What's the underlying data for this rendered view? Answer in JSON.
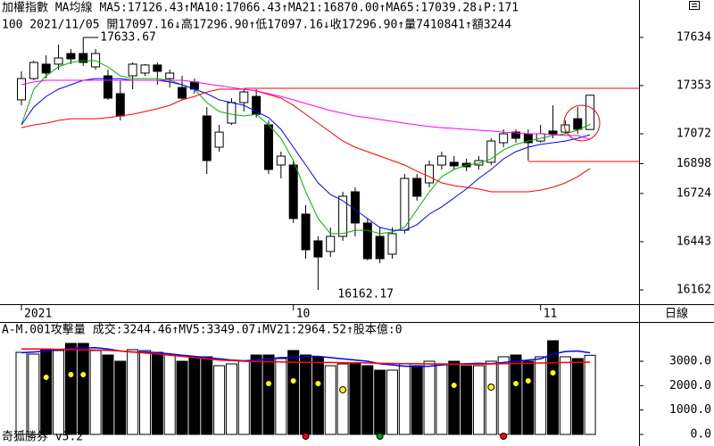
{
  "chart_data": [
    {
      "type": "candlestick",
      "title": "加權指數 MA均線",
      "header_tail": "P:171",
      "info_line": "100 2021/11/05 開17097.16↓高17296.90↑低17097.16↓收17296.90↑量7410841↑額3244",
      "period_label": "日線",
      "high_label": "17633.67",
      "low_label": "16162.17",
      "categories": [
        "2021",
        null,
        null,
        null,
        null,
        null,
        null,
        null,
        null,
        null,
        null,
        null,
        null,
        null,
        null,
        null,
        null,
        null,
        null,
        null,
        null,
        null,
        "10",
        null,
        null,
        null,
        null,
        null,
        null,
        null,
        null,
        null,
        null,
        null,
        null,
        null,
        null,
        null,
        null,
        null,
        null,
        null,
        "11",
        null,
        null,
        null,
        null
      ],
      "open": [
        17270,
        17394,
        17478,
        17478,
        17540,
        17540,
        17462,
        17410,
        17306,
        17410,
        17426,
        17473,
        17394,
        17342,
        17374,
        17176,
        16994,
        17134,
        17254,
        17290,
        17124,
        16890,
        16890,
        16604,
        16448,
        16386,
        16474,
        16734,
        16552,
        16474,
        16370,
        16510,
        16812,
        16786,
        16890,
        16906,
        16900,
        16890,
        16906,
        17020,
        17082,
        17072,
        17030,
        17088,
        17082,
        17160,
        17097.16
      ],
      "high": [
        17436,
        17498,
        17530,
        17592,
        17566,
        17633.67,
        17566,
        17446,
        17384,
        17488,
        17478,
        17488,
        17446,
        17410,
        17394,
        17228,
        17124,
        17280,
        17332,
        17332,
        17150,
        16968,
        16916,
        16656,
        16474,
        16526,
        16734,
        16760,
        16578,
        16526,
        16526,
        16838,
        16838,
        16916,
        16968,
        16942,
        16926,
        16942,
        17046,
        17098,
        17098,
        17098,
        17124,
        17238,
        17150,
        17228,
        17296.9
      ],
      "low": [
        17238,
        17384,
        17394,
        17446,
        17478,
        17467,
        17446,
        17270,
        17150,
        17332,
        17410,
        17358,
        17342,
        17270,
        17306,
        16838,
        16968,
        17124,
        17202,
        17166,
        16838,
        16812,
        16552,
        16344,
        16162.17,
        16354,
        16448,
        16474,
        16334,
        16318,
        16344,
        16490,
        16682,
        16760,
        16864,
        16864,
        16854,
        16864,
        16890,
        16994,
        17020,
        16916,
        17020,
        17046,
        17072,
        17072,
        17097.16
      ],
      "close": [
        17394,
        17488,
        17426,
        17514,
        17509,
        17488,
        17540,
        17280,
        17176,
        17478,
        17473,
        17436,
        17426,
        17280,
        17332,
        16916,
        17082,
        17254,
        17316,
        17186,
        16864,
        16942,
        16578,
        16396,
        16354,
        16474,
        16708,
        16552,
        16344,
        16344,
        16490,
        16812,
        16708,
        16890,
        16942,
        16885,
        16880,
        16916,
        17030,
        17072,
        17046,
        17020,
        17072,
        17072,
        17124,
        17098,
        17296.9
      ],
      "up_color": "#ffffff",
      "down_color": "#000000",
      "series": [
        {
          "name": "MA5:17126.43↑",
          "color": "#00b000",
          "values": [
            17124,
            17332,
            17410,
            17462,
            17488,
            17498,
            17498,
            17462,
            17410,
            17394,
            17394,
            17394,
            17384,
            17358,
            17332,
            17254,
            17202,
            17186,
            17176,
            17186,
            17124,
            17046,
            16916,
            16734,
            16578,
            16490,
            16490,
            16510,
            16510,
            16490,
            16500,
            16526,
            16630,
            16734,
            16822,
            16864,
            16890,
            16900,
            16926,
            16978,
            17010,
            17030,
            17046,
            17062,
            17072,
            17093,
            17126.43
          ]
        },
        {
          "name": "MA10:17066.43↑",
          "color": "#0000ff",
          "values": [
            17124,
            17228,
            17290,
            17332,
            17358,
            17384,
            17394,
            17394,
            17394,
            17384,
            17384,
            17384,
            17374,
            17358,
            17332,
            17306,
            17270,
            17254,
            17238,
            17202,
            17166,
            17098,
            16994,
            16890,
            16786,
            16718,
            16682,
            16630,
            16578,
            16526,
            16510,
            16510,
            16542,
            16604,
            16646,
            16698,
            16750,
            16812,
            16864,
            16926,
            16968,
            16994,
            17010,
            17020,
            17030,
            17046,
            17066.43
          ]
        },
        {
          "name": "MA21:16870.00↑",
          "color": "#ff0000",
          "values": [
            17108,
            17124,
            17134,
            17150,
            17160,
            17160,
            17160,
            17166,
            17176,
            17186,
            17202,
            17218,
            17238,
            17270,
            17290,
            17316,
            17332,
            17332,
            17332,
            17322,
            17301,
            17280,
            17238,
            17186,
            17134,
            17082,
            17030,
            16994,
            16968,
            16942,
            16916,
            16890,
            16854,
            16822,
            16786,
            16770,
            16760,
            16750,
            16734,
            16734,
            16734,
            16734,
            16744,
            16760,
            16786,
            16822,
            16870
          ]
        },
        {
          "name": "MA65:17039.28↓",
          "color": "#ff00ff",
          "values": [
            17358,
            17374,
            17384,
            17384,
            17384,
            17384,
            17384,
            17384,
            17384,
            17384,
            17384,
            17384,
            17384,
            17384,
            17374,
            17363,
            17353,
            17342,
            17332,
            17322,
            17306,
            17290,
            17270,
            17249,
            17228,
            17207,
            17192,
            17176,
            17166,
            17155,
            17145,
            17134,
            17124,
            17114,
            17108,
            17103,
            17098,
            17093,
            17088,
            17082,
            17077,
            17072,
            17072,
            17067,
            17062,
            17062,
            17039.28
          ]
        }
      ],
      "reference_lines": [
        {
          "value": 17337,
          "from": 18,
          "color": "#ff0000"
        },
        {
          "value": 16911,
          "from": 41,
          "color": "#ff0000"
        }
      ],
      "ylim": [
        16084,
        17852
      ],
      "yticks": [
        17634,
        17353,
        17072,
        16898,
        16724,
        16443,
        16162
      ]
    },
    {
      "type": "bar",
      "title": "A-M.001攻擊量",
      "extra_label": "股本億:0",
      "extra_label_color": "#ff00ff",
      "footer": "奇狐勝券 v5.2",
      "series": [
        {
          "name": "成交:3244.46↑",
          "color": "#00b000",
          "style": "bar",
          "values": [
            3367,
            3294,
            3477,
            3440,
            3733,
            3733,
            3440,
            3257,
            3001,
            3477,
            3440,
            3367,
            3257,
            3001,
            3184,
            3184,
            2818,
            2891,
            3001,
            3257,
            3257,
            3111,
            3440,
            3257,
            3184,
            2818,
            2891,
            2891,
            2818,
            2635,
            2635,
            2891,
            2818,
            3001,
            2891,
            3001,
            2818,
            2818,
            3001,
            3184,
            3257,
            3001,
            3184,
            3843,
            3184,
            3111,
            3244.46
          ]
        },
        {
          "name": "MV5:3349.07↓",
          "color": "#0000ff",
          "style": "line",
          "values": [
            3350,
            3380,
            3420,
            3480,
            3520,
            3550,
            3560,
            3500,
            3420,
            3380,
            3380,
            3350,
            3300,
            3250,
            3200,
            3150,
            3100,
            3050,
            3020,
            3050,
            3100,
            3150,
            3150,
            3200,
            3200,
            3150,
            3100,
            3050,
            3000,
            2900,
            2850,
            2800,
            2780,
            2800,
            2850,
            2880,
            2900,
            2920,
            2900,
            2950,
            3000,
            3050,
            3100,
            3300,
            3400,
            3420,
            3349.07
          ]
        },
        {
          "name": "MV21:2964.52↑",
          "color": "#ff0000",
          "style": "line",
          "values": [
            3500,
            3500,
            3500,
            3490,
            3480,
            3470,
            3460,
            3450,
            3420,
            3380,
            3340,
            3300,
            3250,
            3200,
            3150,
            3100,
            3050,
            3030,
            3000,
            2990,
            2980,
            2970,
            2960,
            2960,
            2950,
            2950,
            2940,
            2940,
            2930,
            2920,
            2910,
            2900,
            2900,
            2890,
            2890,
            2880,
            2880,
            2880,
            2890,
            2900,
            2910,
            2920,
            2930,
            2940,
            2950,
            2960,
            2964.52
          ]
        }
      ],
      "dots": {
        "color": "#ffff00",
        "values": [
          null,
          null,
          2342,
          null,
          2452,
          2452,
          null,
          null,
          null,
          null,
          null,
          null,
          null,
          null,
          null,
          null,
          null,
          null,
          null,
          null,
          2086,
          null,
          2196,
          null,
          2086,
          null,
          1830,
          null,
          null,
          null,
          null,
          null,
          null,
          null,
          null,
          2013,
          null,
          null,
          1940,
          null,
          2086,
          2196,
          null,
          2525,
          null,
          null,
          null
        ]
      },
      "signals": [
        null,
        null,
        null,
        null,
        null,
        null,
        null,
        null,
        null,
        null,
        null,
        null,
        null,
        null,
        null,
        null,
        null,
        null,
        null,
        null,
        null,
        null,
        null,
        "#ff0000",
        null,
        null,
        null,
        null,
        null,
        "#00a000",
        null,
        null,
        null,
        null,
        null,
        null,
        null,
        null,
        null,
        "#ff0000",
        null,
        null,
        null,
        null,
        null,
        null,
        null
      ],
      "ylim": [
        -366,
        3915
      ],
      "yticks": [
        {
          "value": 3000,
          "label": "3000.0"
        },
        {
          "value": 2000,
          "label": "2000.0"
        },
        {
          "value": 1000,
          "label": "1000.0"
        },
        {
          "value": 0,
          "label": "0.0"
        }
      ]
    }
  ]
}
